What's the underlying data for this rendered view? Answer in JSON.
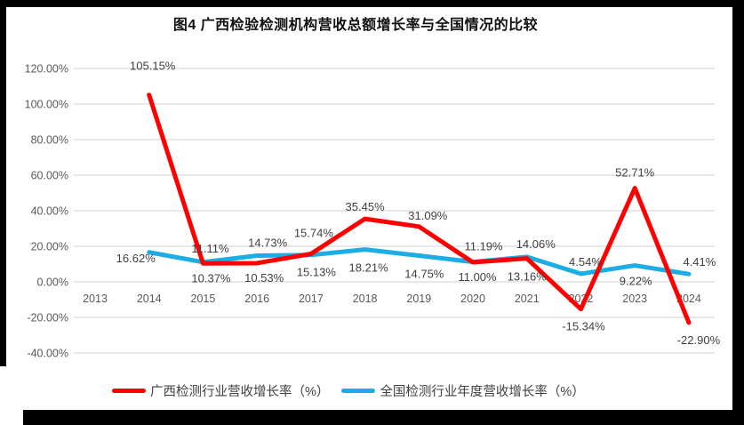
{
  "title": "图4 广西检验检测机构营收总额增长率与全国情况的比较",
  "colors": {
    "guangxi_line": "#FF0000",
    "national_line": "#1CADE4",
    "gridline": "#D9D9D9",
    "axis_text": "#595959",
    "data_label_text": "#404040",
    "scan_border": "#000000"
  },
  "chart_data": {
    "type": "line",
    "categories": [
      "2013",
      "2014",
      "2015",
      "2016",
      "2017",
      "2018",
      "2019",
      "2020",
      "2021",
      "2022",
      "2023",
      "2024"
    ],
    "series": [
      {
        "name": "广西检测行业营收增长率（%）",
        "color": "#FF0000",
        "values": [
          null,
          105.15,
          10.37,
          10.53,
          15.74,
          35.45,
          31.09,
          11.0,
          13.16,
          -15.34,
          52.71,
          -22.9
        ],
        "label_offsets": [
          null,
          [
            4,
            -28
          ],
          [
            9,
            21
          ],
          [
            8,
            21
          ],
          [
            3,
            -19
          ],
          [
            0,
            -9
          ],
          [
            10,
            -8
          ],
          [
            5,
            21
          ],
          [
            0,
            25
          ],
          [
            3,
            24
          ],
          [
            0,
            -13
          ],
          [
            11,
            24
          ]
        ]
      },
      {
        "name": "全国检测行业年度营收增长率（%）",
        "color": "#1CADE4",
        "values": [
          null,
          16.62,
          11.11,
          14.73,
          15.13,
          18.21,
          14.75,
          11.19,
          14.06,
          4.54,
          9.22,
          4.41
        ],
        "label_offsets": [
          null,
          [
            -15,
            11
          ],
          [
            8,
            -11
          ],
          [
            12,
            -10
          ],
          [
            6,
            24
          ],
          [
            4,
            25
          ],
          [
            6,
            25
          ],
          [
            12,
            -13
          ],
          [
            10,
            -10
          ],
          [
            5,
            -9
          ],
          [
            1,
            22
          ],
          [
            12,
            -9
          ]
        ]
      }
    ],
    "y_ticks": [
      {
        "value": 120,
        "label": "120.00%"
      },
      {
        "value": 100,
        "label": "100.00%"
      },
      {
        "value": 80,
        "label": "80.00%"
      },
      {
        "value": 60,
        "label": "60.00%"
      },
      {
        "value": 40,
        "label": "40.00%"
      },
      {
        "value": 20,
        "label": "20.00%"
      },
      {
        "value": 0,
        "label": "0.00%"
      },
      {
        "value": -20,
        "label": "-20.00%"
      },
      {
        "value": -40,
        "label": "-40.00%"
      }
    ],
    "ylim": [
      -40,
      120
    ],
    "grid": true,
    "legend_position": "bottom",
    "label_format": "two_decimals_percent"
  }
}
